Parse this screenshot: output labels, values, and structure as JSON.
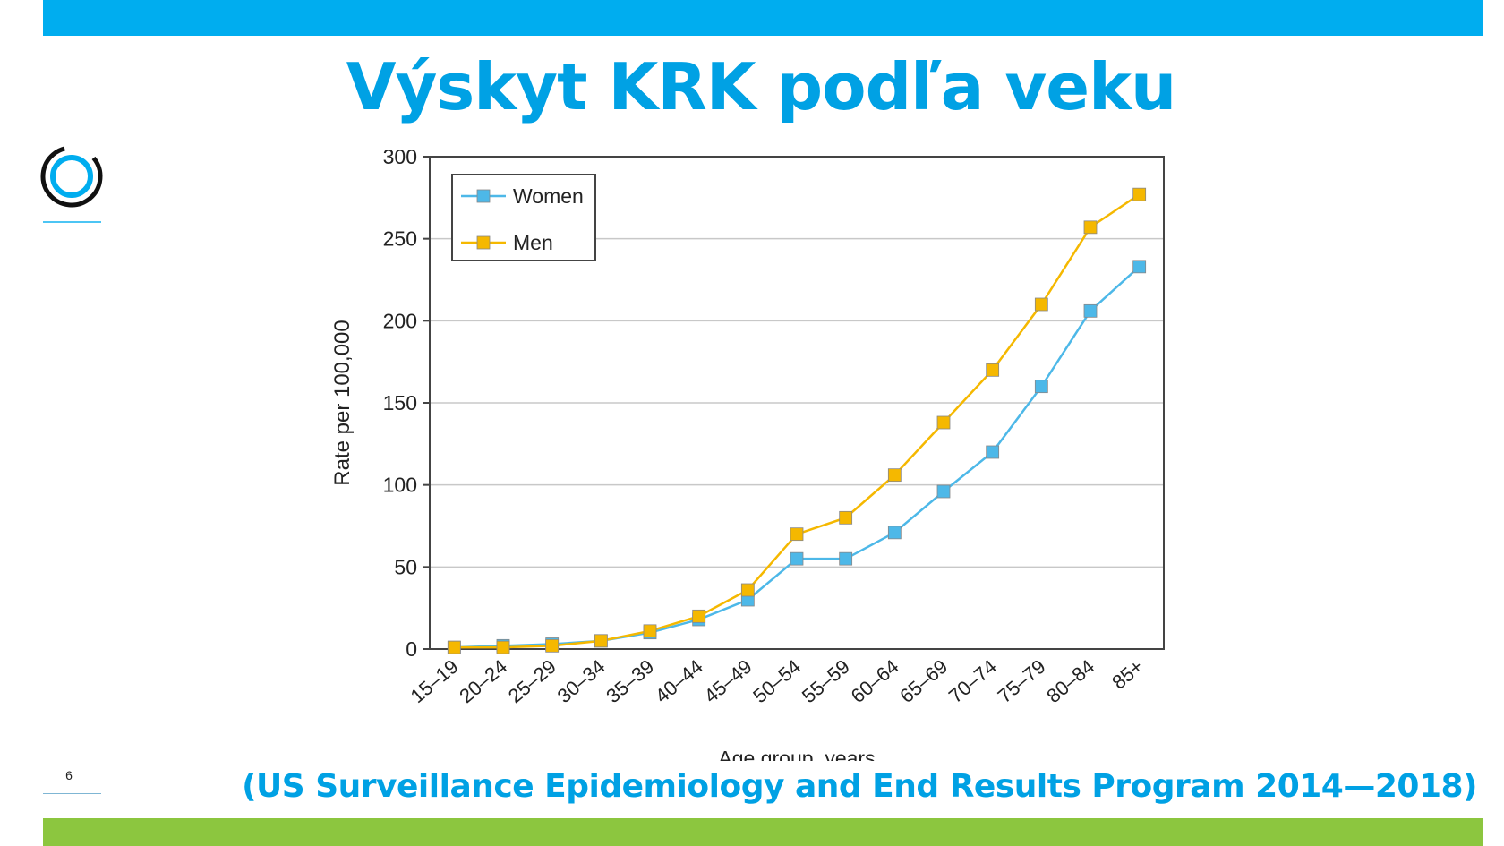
{
  "slide": {
    "title": "Výskyt KRK podľa veku",
    "source": "(US Surveillance Epidemiology and End Results Program 2014—2018)",
    "page_number": "6"
  },
  "colors": {
    "top_bar": "#00ADEF",
    "bottom_bar": "#8CC63F",
    "title": "#00A1E4",
    "women": "#4DB8E8",
    "men": "#F5B800"
  },
  "chart_data": {
    "type": "line",
    "xlabel": "Age group, years",
    "ylabel": "Rate per 100,000",
    "ylim": [
      0,
      300
    ],
    "yticks": [
      0,
      50,
      100,
      150,
      200,
      250,
      300
    ],
    "grid": true,
    "legend_position": "top-left",
    "categories": [
      "15–19",
      "20–24",
      "25–29",
      "30–34",
      "35–39",
      "40–44",
      "45–49",
      "50–54",
      "55–59",
      "60–64",
      "65–69",
      "70–74",
      "75–79",
      "80–84",
      "85+"
    ],
    "series": [
      {
        "name": "Women",
        "color": "#4DB8E8",
        "values": [
          1,
          2,
          3,
          5,
          10,
          18,
          30,
          55,
          55,
          71,
          96,
          120,
          160,
          206,
          233
        ]
      },
      {
        "name": "Men",
        "color": "#F5B800",
        "values": [
          1,
          1,
          2,
          5,
          11,
          20,
          36,
          70,
          80,
          106,
          138,
          170,
          210,
          257,
          277
        ]
      }
    ]
  }
}
